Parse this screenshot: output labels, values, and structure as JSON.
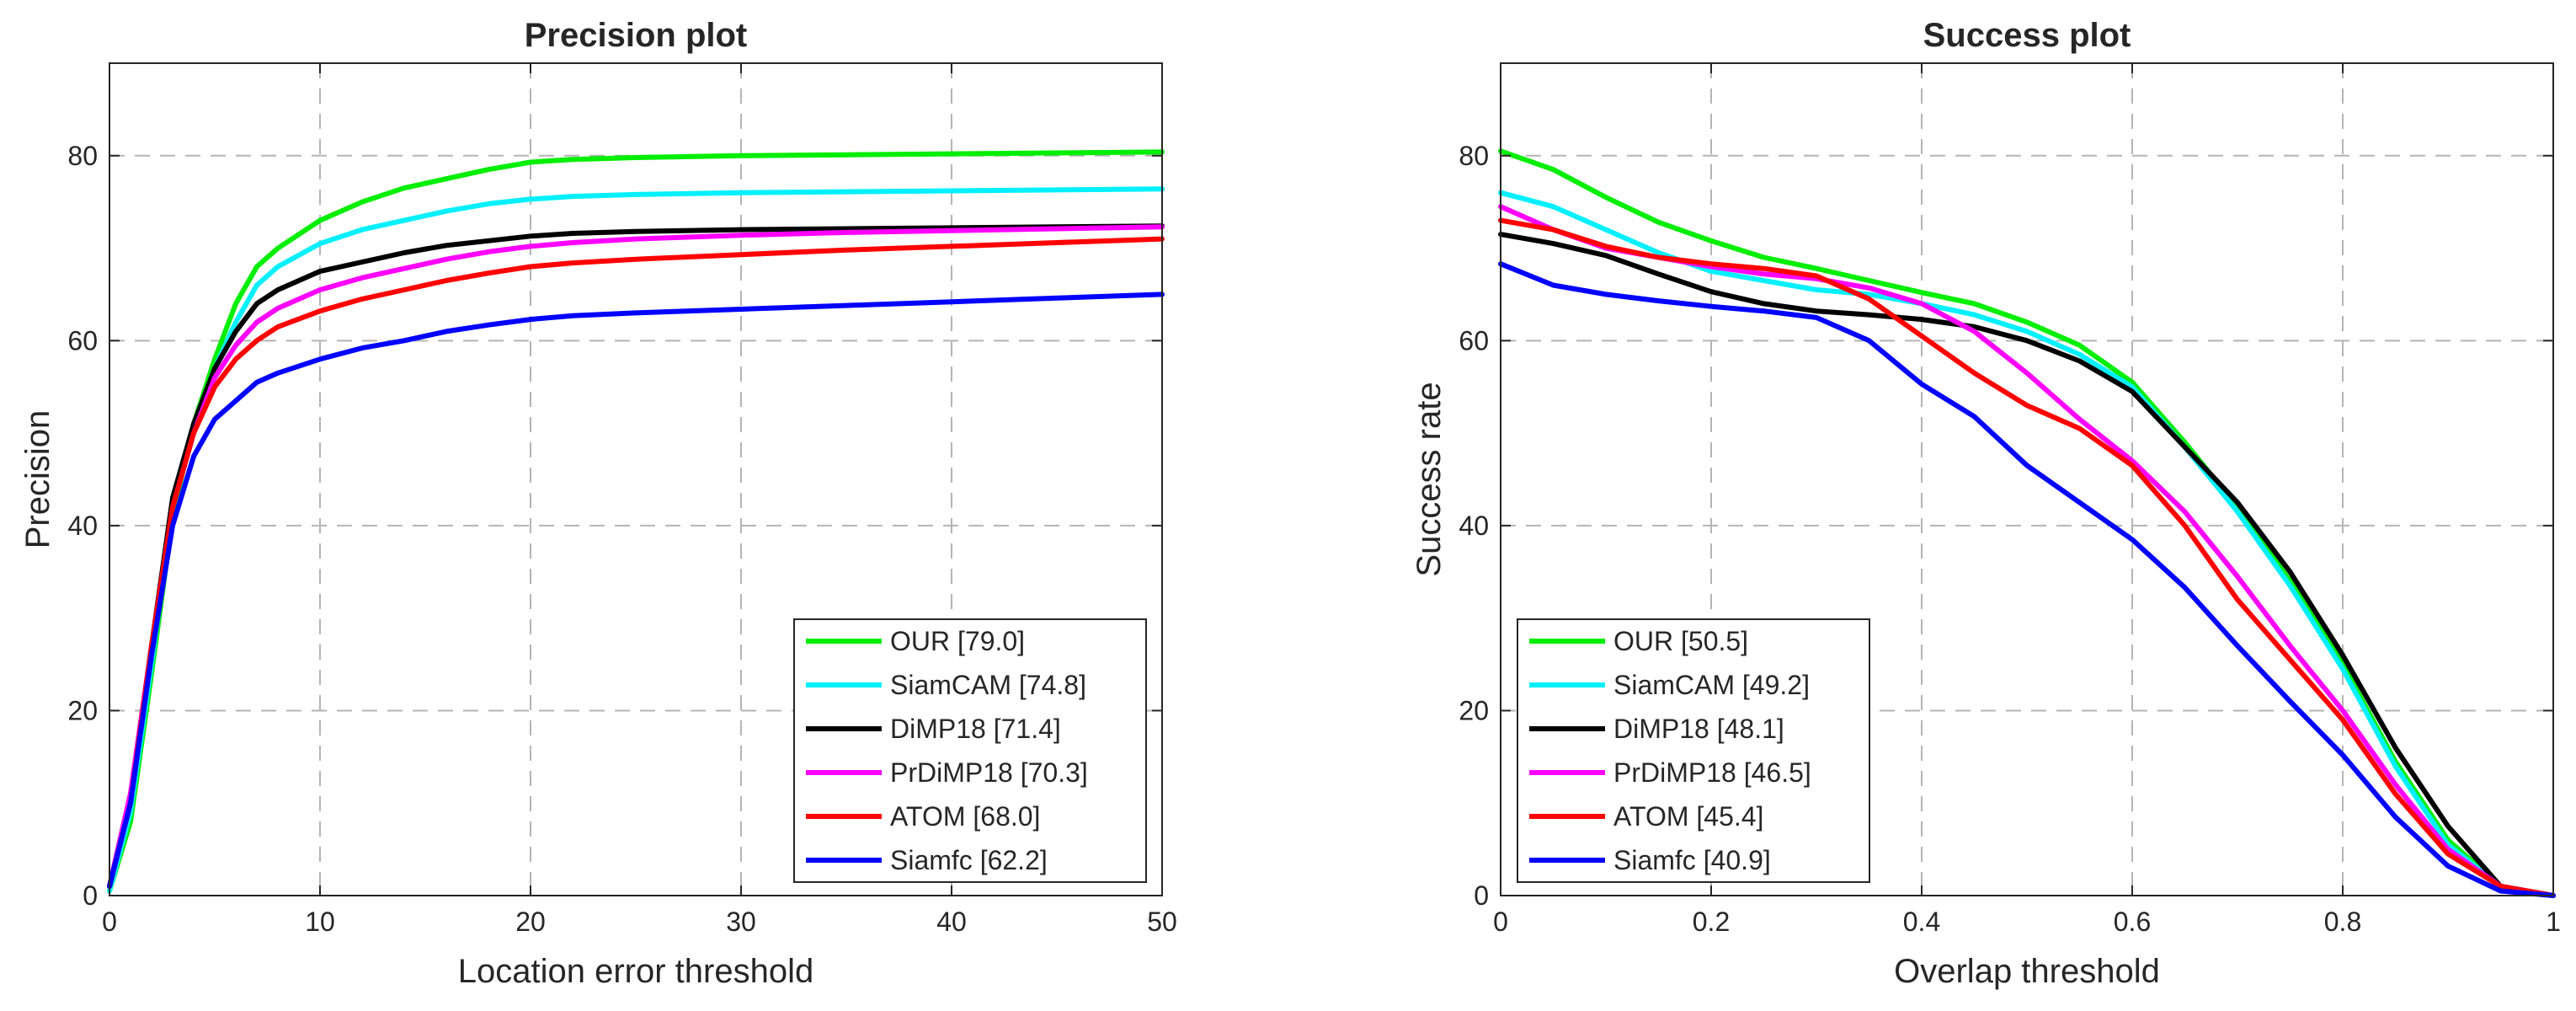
{
  "figure": {
    "background": "#ffffff",
    "axis_color": "#262626",
    "grid_color": "#b4b4b4"
  },
  "chart_data": [
    {
      "type": "line",
      "title": "Precision plot",
      "xlabel": "Location error threshold",
      "ylabel": "Precision",
      "xlim": [
        0,
        50
      ],
      "ylim": [
        0,
        90
      ],
      "xticks": [
        0,
        10,
        20,
        30,
        40,
        50
      ],
      "yticks": [
        0,
        20,
        40,
        60,
        80
      ],
      "xtick_labels": [
        "0",
        "10",
        "20",
        "30",
        "40",
        "50"
      ],
      "ytick_labels": [
        "0",
        "20",
        "40",
        "60",
        "80"
      ],
      "grid": true,
      "legend_position": "bottom-right",
      "series": [
        {
          "name": "OUR [79.0]",
          "color": "#00ee00",
          "x": [
            0,
            1,
            2,
            3,
            4,
            5,
            6,
            7,
            8,
            10,
            12,
            14,
            16,
            18,
            20,
            22,
            25,
            30,
            35,
            40,
            45,
            50
          ],
          "y": [
            0.5,
            8,
            24,
            41,
            51,
            58,
            64,
            68,
            70,
            73,
            75,
            76.5,
            77.5,
            78.5,
            79.3,
            79.6,
            79.8,
            80,
            80.1,
            80.2,
            80.3,
            80.4
          ]
        },
        {
          "name": "SiamCAM [74.8]",
          "color": "#00f0ff",
          "x": [
            0,
            1,
            2,
            3,
            4,
            5,
            6,
            7,
            8,
            10,
            12,
            14,
            16,
            18,
            20,
            22,
            25,
            30,
            35,
            40,
            45,
            50
          ],
          "y": [
            0.5,
            9,
            25,
            42,
            51,
            57,
            62,
            66,
            68,
            70.5,
            72,
            73,
            74,
            74.8,
            75.3,
            75.6,
            75.8,
            76,
            76.1,
            76.2,
            76.3,
            76.4
          ]
        },
        {
          "name": "DiMP18 [71.4]",
          "color": "#000000",
          "x": [
            0,
            1,
            2,
            3,
            4,
            5,
            6,
            7,
            8,
            10,
            12,
            14,
            16,
            18,
            20,
            22,
            25,
            30,
            35,
            40,
            45,
            50
          ],
          "y": [
            1,
            11,
            27,
            43,
            51,
            57,
            61,
            64,
            65.5,
            67.5,
            68.5,
            69.5,
            70.3,
            70.8,
            71.3,
            71.6,
            71.8,
            72,
            72.1,
            72.2,
            72.3,
            72.4
          ]
        },
        {
          "name": "PrDiMP18 [70.3]",
          "color": "#ff00ff",
          "x": [
            0,
            1,
            2,
            3,
            4,
            5,
            6,
            7,
            8,
            10,
            12,
            14,
            16,
            18,
            20,
            22,
            25,
            30,
            35,
            40,
            45,
            50
          ],
          "y": [
            1,
            11,
            27,
            42,
            50,
            56,
            59.5,
            62,
            63.5,
            65.5,
            66.8,
            67.8,
            68.8,
            69.6,
            70.2,
            70.6,
            71,
            71.4,
            71.7,
            71.9,
            72.1,
            72.3
          ]
        },
        {
          "name": "ATOM [68.0]",
          "color": "#ff0000",
          "x": [
            0,
            1,
            2,
            3,
            4,
            5,
            6,
            7,
            8,
            10,
            12,
            14,
            16,
            18,
            20,
            22,
            25,
            30,
            35,
            40,
            45,
            50
          ],
          "y": [
            1,
            10,
            27,
            42,
            50,
            55,
            58,
            60,
            61.5,
            63.2,
            64.5,
            65.5,
            66.5,
            67.3,
            68,
            68.4,
            68.8,
            69.3,
            69.8,
            70.2,
            70.6,
            71
          ]
        },
        {
          "name": "Siamfc [62.2]",
          "color": "#0000ff",
          "x": [
            0,
            1,
            2,
            3,
            4,
            5,
            6,
            7,
            8,
            10,
            12,
            14,
            16,
            18,
            20,
            22,
            25,
            30,
            35,
            40,
            45,
            50
          ],
          "y": [
            1,
            10,
            26,
            40,
            47.5,
            51.5,
            53.5,
            55.5,
            56.5,
            58,
            59.2,
            60,
            61,
            61.7,
            62.3,
            62.7,
            63,
            63.4,
            63.8,
            64.2,
            64.6,
            65
          ]
        }
      ]
    },
    {
      "type": "line",
      "title": "Success plot",
      "xlabel": "Overlap threshold",
      "ylabel": "Success rate",
      "xlim": [
        0,
        1
      ],
      "ylim": [
        0,
        90
      ],
      "xticks": [
        0,
        0.2,
        0.4,
        0.6,
        0.8,
        1
      ],
      "yticks": [
        0,
        20,
        40,
        60,
        80
      ],
      "xtick_labels": [
        "0",
        "0.2",
        "0.4",
        "0.6",
        "0.8",
        "1"
      ],
      "ytick_labels": [
        "0",
        "20",
        "40",
        "60",
        "80"
      ],
      "grid": true,
      "legend_position": "bottom-left",
      "series": [
        {
          "name": "OUR [50.5]",
          "color": "#00ee00",
          "x": [
            0,
            0.05,
            0.1,
            0.15,
            0.2,
            0.25,
            0.3,
            0.35,
            0.4,
            0.45,
            0.5,
            0.55,
            0.6,
            0.65,
            0.7,
            0.75,
            0.8,
            0.85,
            0.9,
            0.95,
            1
          ],
          "y": [
            80.5,
            78.5,
            75.5,
            72.8,
            70.8,
            69,
            67.8,
            66.5,
            65.2,
            64,
            62,
            59.5,
            55.5,
            49,
            42,
            34,
            25,
            14.5,
            6,
            1,
            0
          ]
        },
        {
          "name": "SiamCAM [49.2]",
          "color": "#00f0ff",
          "x": [
            0,
            0.05,
            0.1,
            0.15,
            0.2,
            0.25,
            0.3,
            0.35,
            0.4,
            0.45,
            0.5,
            0.55,
            0.6,
            0.65,
            0.7,
            0.75,
            0.8,
            0.85,
            0.9,
            0.95,
            1
          ],
          "y": [
            76,
            74.5,
            72,
            69.5,
            67.5,
            66.5,
            65.5,
            65,
            64,
            62.8,
            61,
            58.5,
            55,
            48.5,
            41.5,
            33.5,
            24.5,
            14,
            5.5,
            1,
            0
          ]
        },
        {
          "name": "DiMP18 [48.1]",
          "color": "#000000",
          "x": [
            0,
            0.05,
            0.1,
            0.15,
            0.2,
            0.25,
            0.3,
            0.35,
            0.4,
            0.45,
            0.5,
            0.55,
            0.6,
            0.65,
            0.7,
            0.75,
            0.8,
            0.85,
            0.9,
            0.95,
            1
          ],
          "y": [
            71.5,
            70.5,
            69.2,
            67.2,
            65.3,
            64,
            63.2,
            62.8,
            62.3,
            61.5,
            60,
            57.8,
            54.5,
            48.5,
            42.5,
            35,
            26,
            16,
            7.5,
            1,
            0
          ]
        },
        {
          "name": "PrDiMP18 [46.5]",
          "color": "#ff00ff",
          "x": [
            0,
            0.05,
            0.1,
            0.15,
            0.2,
            0.25,
            0.3,
            0.35,
            0.4,
            0.45,
            0.5,
            0.55,
            0.6,
            0.65,
            0.7,
            0.75,
            0.8,
            0.85,
            0.9,
            0.95,
            1
          ],
          "y": [
            74.5,
            72,
            70,
            69,
            68,
            67.2,
            66.7,
            65.7,
            64,
            61,
            56.5,
            51.5,
            47,
            41.5,
            34.5,
            27,
            20,
            12,
            5,
            1,
            0
          ]
        },
        {
          "name": "ATOM [45.4]",
          "color": "#ff0000",
          "x": [
            0,
            0.05,
            0.1,
            0.15,
            0.2,
            0.25,
            0.3,
            0.35,
            0.4,
            0.45,
            0.5,
            0.55,
            0.6,
            0.65,
            0.7,
            0.75,
            0.8,
            0.85,
            0.9,
            0.95,
            1
          ],
          "y": [
            73,
            72,
            70.2,
            69,
            68.3,
            67.8,
            67,
            64.5,
            60.5,
            56.5,
            53,
            50.5,
            46.5,
            40,
            32,
            25.5,
            19,
            11,
            4.5,
            1,
            0
          ]
        },
        {
          "name": "Siamfc [40.9]",
          "color": "#0000ff",
          "x": [
            0,
            0.05,
            0.1,
            0.15,
            0.2,
            0.25,
            0.3,
            0.35,
            0.4,
            0.45,
            0.5,
            0.55,
            0.6,
            0.65,
            0.7,
            0.75,
            0.8,
            0.85,
            0.9,
            0.95,
            1
          ],
          "y": [
            68.3,
            66,
            65,
            64.3,
            63.7,
            63.2,
            62.5,
            60,
            55.3,
            51.8,
            46.5,
            42.5,
            38.5,
            33.3,
            27,
            21,
            15.2,
            8.5,
            3.2,
            0.5,
            0
          ]
        }
      ]
    }
  ]
}
